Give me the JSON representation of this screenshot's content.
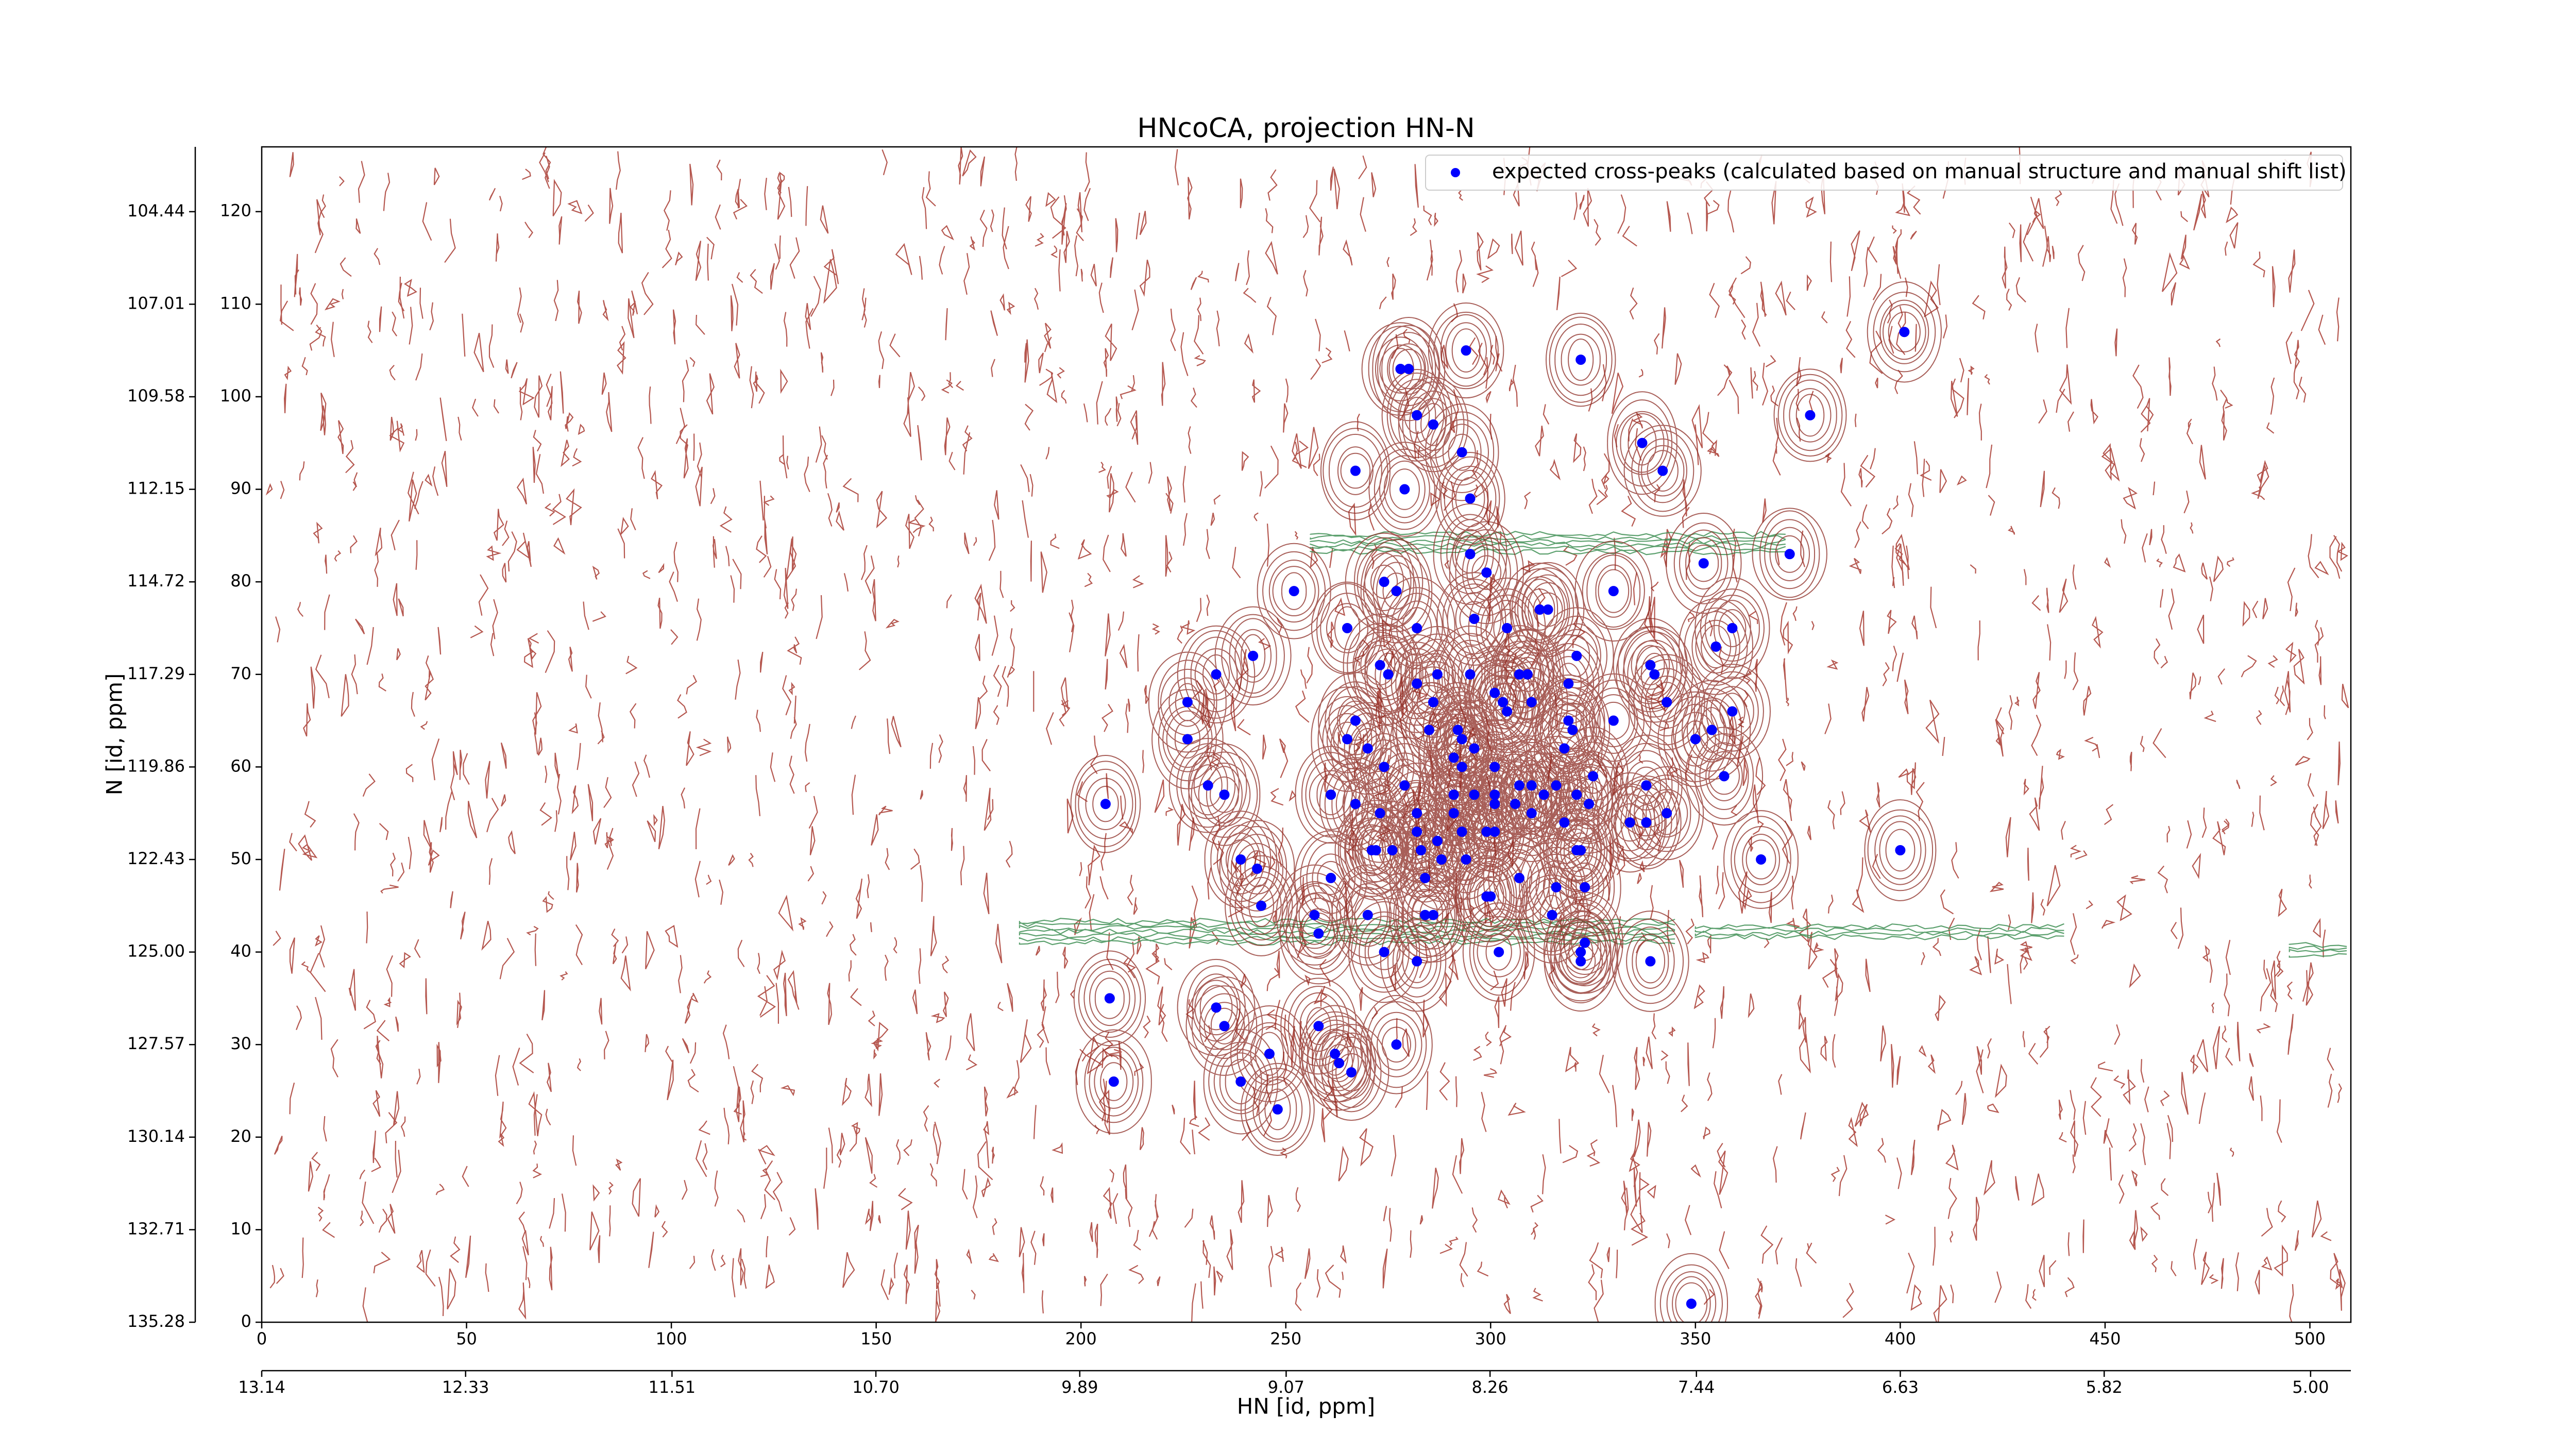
{
  "chart_data": {
    "type": "scatter",
    "title": "HNcoCA, projection HN-N",
    "xlabel": "HN [id, ppm]",
    "ylabel": "N [id, ppm]",
    "xlim": [
      0,
      510
    ],
    "ylim": [
      0,
      127
    ],
    "xticks": [
      0,
      50,
      100,
      150,
      200,
      250,
      300,
      350,
      400,
      450,
      500
    ],
    "yticks": [
      0,
      10,
      20,
      30,
      40,
      50,
      60,
      70,
      80,
      90,
      100,
      110,
      120
    ],
    "x2lim": [
      13.14,
      4.84
    ],
    "x2ticks": [
      13.14,
      12.33,
      11.51,
      {
        "value": 10.7,
        "label": "10.70"
      },
      9.89,
      9.07,
      8.26,
      7.44,
      6.63,
      5.82,
      {
        "value": 5.0,
        "label": "5.00"
      }
    ],
    "y2lim": [
      135.28,
      102.64
    ],
    "y2ticks": [
      135.28,
      132.71,
      {
        "value": 130.14,
        "label": "130.14"
      },
      127.57,
      {
        "value": 125.0,
        "label": "125.00"
      },
      122.43,
      119.86,
      117.29,
      114.72,
      112.15,
      109.58,
      107.01,
      104.44
    ],
    "legend": "upper right",
    "x": [
      401,
      378,
      294,
      322,
      278,
      280,
      282,
      286,
      293,
      267,
      279,
      295,
      337,
      342,
      295,
      299,
      352,
      373,
      252,
      274,
      277,
      330,
      265,
      282,
      296,
      304,
      312,
      314,
      359,
      355,
      242,
      233,
      273,
      321,
      339,
      340,
      226,
      275,
      282,
      287,
      295,
      307,
      309,
      319,
      301,
      303,
      304,
      310,
      286,
      319,
      330,
      343,
      359,
      350,
      354,
      267,
      265,
      270,
      285,
      292,
      293,
      296,
      318,
      320,
      226,
      274,
      291,
      293,
      301,
      325,
      357,
      338,
      231,
      235,
      206,
      261,
      279,
      291,
      296,
      301,
      307,
      310,
      313,
      316,
      321,
      324,
      267,
      273,
      282,
      291,
      301,
      306,
      310,
      318,
      334,
      338,
      343,
      299,
      301,
      282,
      293,
      287,
      283,
      271,
      272,
      276,
      321,
      322,
      366,
      400,
      239,
      243,
      288,
      294,
      261,
      284,
      300,
      299,
      307,
      316,
      323,
      244,
      257,
      284,
      286,
      315,
      258,
      270,
      274,
      282,
      302,
      322,
      322,
      339,
      323,
      207,
      233,
      235,
      258,
      262,
      263,
      266,
      277,
      246,
      239,
      248,
      208,
      349
    ],
    "series": [
      {
        "name": "expected cross-peaks (calculated based on manual structure and manual shift list)",
        "color": "#0000ff",
        "values": [
          107,
          98,
          105,
          104,
          103,
          103,
          98,
          97,
          94,
          92,
          90,
          89,
          95,
          92,
          83,
          81,
          82,
          83,
          79,
          80,
          79,
          79,
          75,
          75,
          76,
          75,
          77,
          77,
          75,
          73,
          72,
          70,
          71,
          72,
          71,
          70,
          67,
          70,
          69,
          70,
          70,
          70,
          70,
          69,
          68,
          67,
          66,
          67,
          67,
          65,
          65,
          67,
          66,
          63,
          64,
          65,
          63,
          62,
          64,
          64,
          63,
          62,
          62,
          64,
          63,
          60,
          61,
          60,
          60,
          59,
          59,
          58,
          58,
          57,
          56,
          57,
          58,
          57,
          57,
          57,
          58,
          58,
          57,
          58,
          57,
          56,
          56,
          55,
          55,
          55,
          56,
          56,
          55,
          54,
          54,
          54,
          55,
          53,
          53,
          53,
          53,
          52,
          51,
          51,
          51,
          51,
          51,
          51,
          50,
          51,
          50,
          49,
          50,
          50,
          48,
          48,
          46,
          46,
          48,
          47,
          47,
          45,
          44,
          44,
          44,
          44,
          42,
          44,
          40,
          39,
          40,
          40,
          39,
          39,
          41,
          35,
          34,
          32,
          32,
          29,
          28,
          27,
          30,
          29,
          26,
          23,
          26,
          2
        ]
      }
    ]
  }
}
